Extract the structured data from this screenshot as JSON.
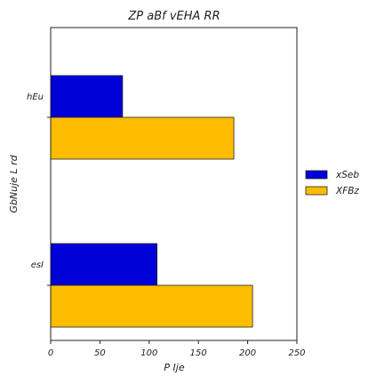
{
  "chart_data": {
    "type": "bar",
    "orientation": "horizontal",
    "title": "ZP aBf vEHA RR",
    "xlabel": "P Ije",
    "ylabel": "GbNuje  L rd",
    "categories": [
      "hEu",
      "esI"
    ],
    "series": [
      {
        "name": "xSeb",
        "color": "#0000d8",
        "values": [
          73,
          108
        ]
      },
      {
        "name": "XFBz",
        "color": "#ffbd00",
        "values": [
          186,
          205
        ]
      }
    ],
    "xlim": [
      0,
      250
    ],
    "xticks": [
      "0",
      "50",
      "100",
      "150",
      "200",
      "250"
    ],
    "grid": false,
    "legend_position": "right"
  }
}
